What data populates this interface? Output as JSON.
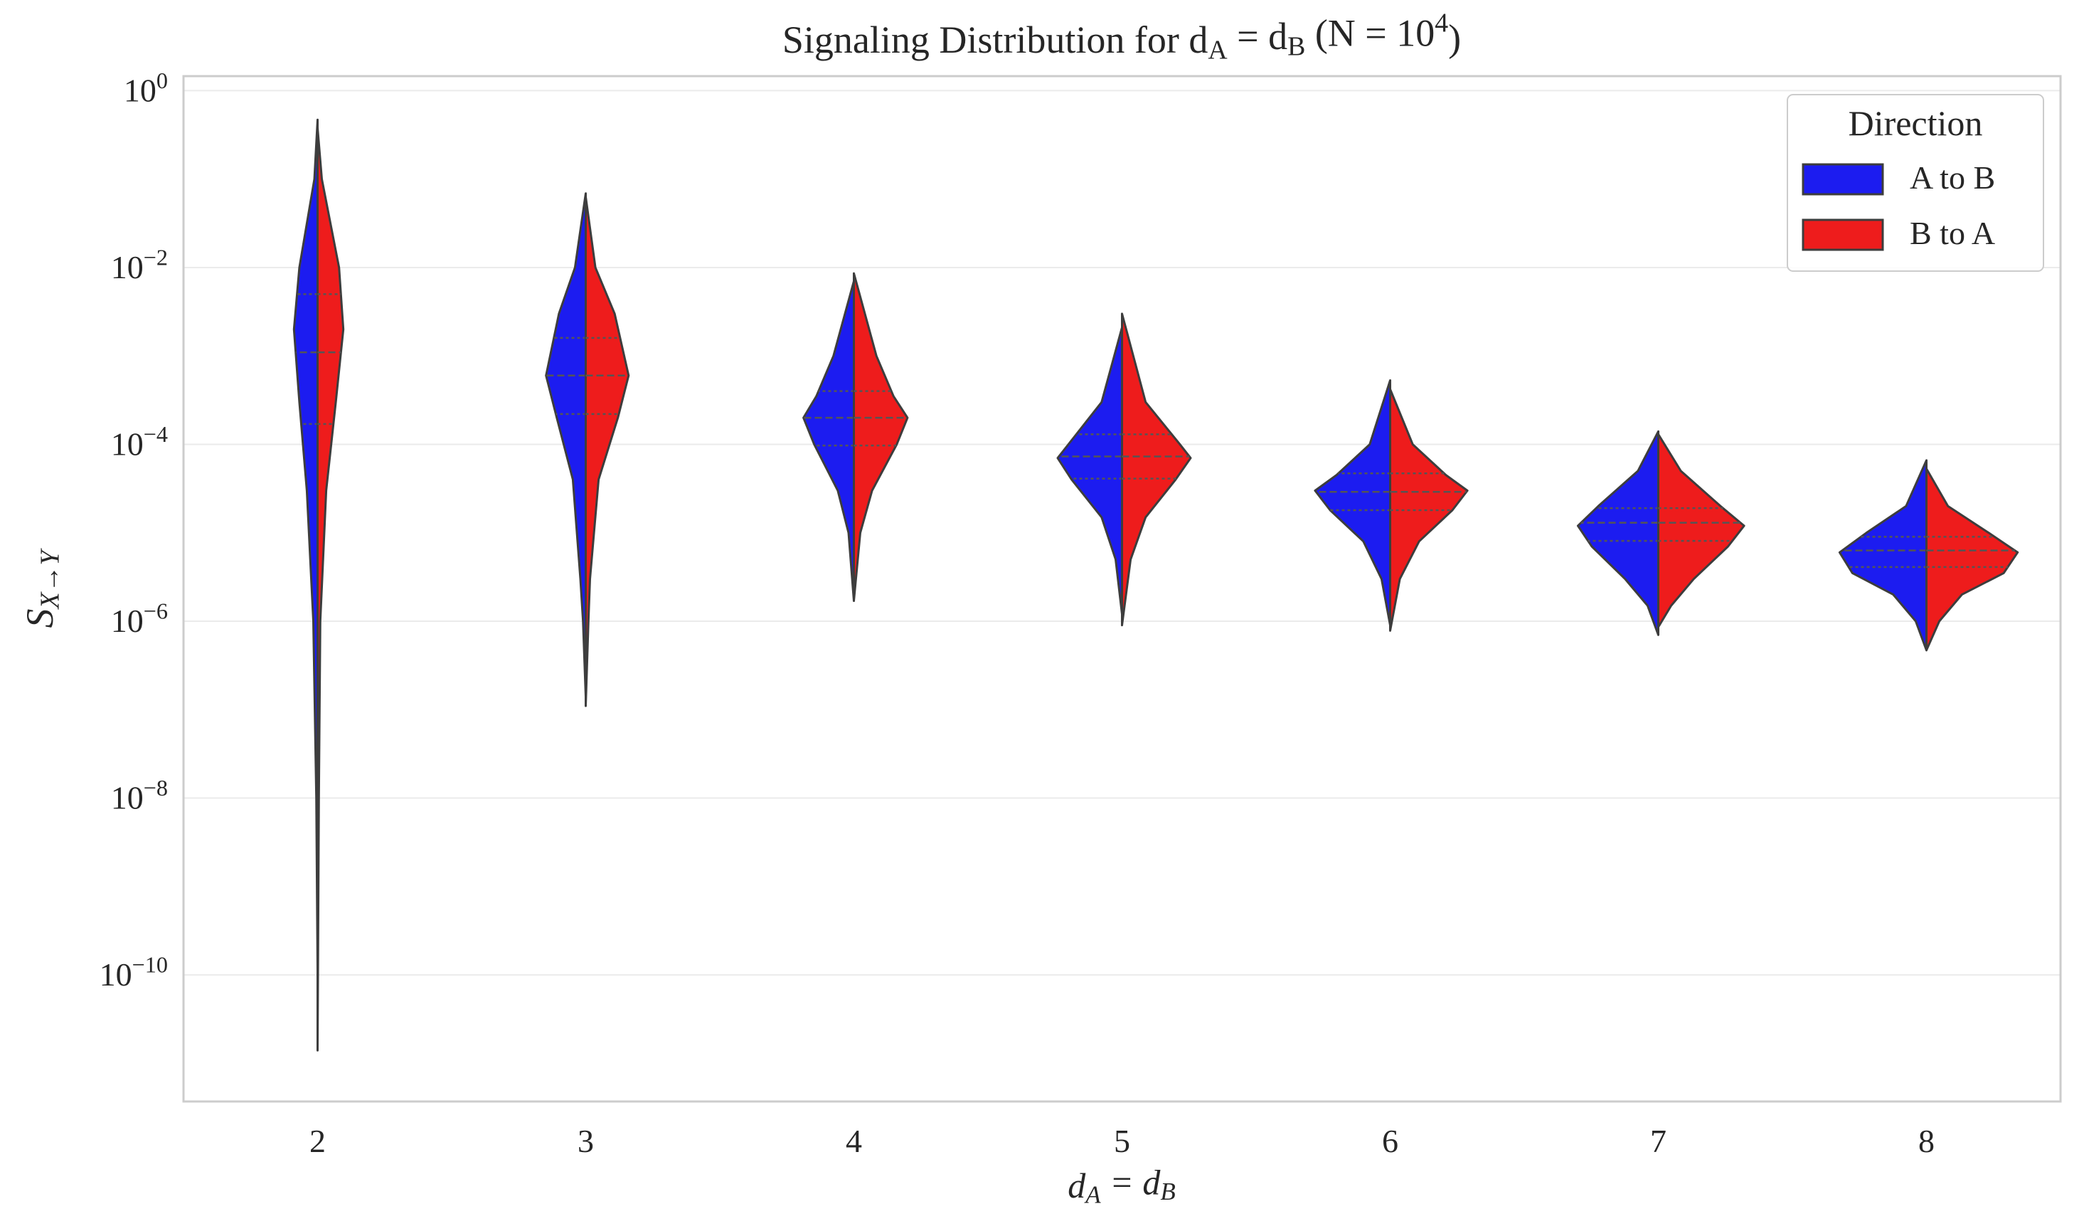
{
  "chart_data": {
    "type": "violin",
    "title": "Signaling Distribution for d_{A} = d_{B} (N = 10^{4})",
    "x_label": "d_{A} = d_{B}",
    "y_label": "S_{X→Y}",
    "y_scale": "log",
    "ylim": [
      3.7e-12,
      1.46
    ],
    "yticks": [
      {
        "value": 1,
        "label": "10^{0}"
      },
      {
        "value": 0.01,
        "label": "10^{−2}"
      },
      {
        "value": 0.0001,
        "label": "10^{−4}"
      },
      {
        "value": 1e-06,
        "label": "10^{−6}"
      },
      {
        "value": 1e-08,
        "label": "10^{−8}"
      },
      {
        "value": 1e-10,
        "label": "10^{−10}"
      }
    ],
    "grid": true,
    "legend_title": "Direction",
    "legend_position": "upper-right",
    "categories": [
      "2",
      "3",
      "4",
      "5",
      "6",
      "7",
      "8"
    ],
    "series": [
      {
        "name": "A to B",
        "color": "#1c1cf0",
        "violins": [
          {
            "q1": 0.00017,
            "median": 0.0011,
            "q3": 0.005,
            "density_y": [
              0.47,
              0.1,
              0.01,
              0.002,
              0.0003,
              3e-05,
              1e-06,
              1e-08,
              1.1e-10
            ],
            "density": [
              0,
              0.03,
              0.17,
              0.22,
              0.17,
              0.1,
              0.04,
              0.012,
              0
            ]
          },
          {
            "q1": 0.00022,
            "median": 0.0006,
            "q3": 0.0016,
            "density_y": [
              0.069,
              0.01,
              0.003,
              0.0006,
              0.0002,
              4e-05,
              3e-06,
              1e-06,
              1.4e-07
            ],
            "density": [
              0,
              0.1,
              0.25,
              0.37,
              0.27,
              0.12,
              0.05,
              0.025,
              0
            ]
          },
          {
            "q1": 9.7e-05,
            "median": 0.0002,
            "q3": 0.0004,
            "density_y": [
              0.007,
              0.001,
              0.00035,
              0.0002,
              0.0001,
              3e-05,
              1e-05,
              1.7e-06
            ],
            "density": [
              0,
              0.19,
              0.35,
              0.47,
              0.37,
              0.15,
              0.05,
              0
            ]
          },
          {
            "q1": 4.1e-05,
            "median": 7.3e-05,
            "q3": 0.00013,
            "density_y": [
              0.0021,
              0.0003,
              0.0001,
              7e-05,
              4e-05,
              1.5e-05,
              5e-06,
              1.2e-06
            ],
            "density": [
              0,
              0.19,
              0.5,
              0.6,
              0.47,
              0.19,
              0.06,
              0
            ]
          },
          {
            "q1": 1.8e-05,
            "median": 2.9e-05,
            "q3": 4.7e-05,
            "density_y": [
              0.00053,
              0.0001,
              4.5e-05,
              3e-05,
              1.8e-05,
              8e-06,
              3e-06,
              9e-07
            ],
            "density": [
              0,
              0.19,
              0.5,
              0.7,
              0.56,
              0.25,
              0.08,
              0
            ]
          },
          {
            "q1": 8.1e-06,
            "median": 1.3e-05,
            "q3": 1.9e-05,
            "density_y": [
              0.00014,
              5e-05,
              2e-05,
              1.2e-05,
              7e-06,
              3e-06,
              1.5e-06,
              7e-07
            ],
            "density": [
              0,
              0.19,
              0.56,
              0.75,
              0.62,
              0.31,
              0.1,
              0
            ]
          },
          {
            "q1": 4.1e-06,
            "median": 6.3e-06,
            "q3": 9e-06,
            "density_y": [
              6.6e-05,
              2e-05,
              1e-05,
              6e-06,
              3.5e-06,
              2e-06,
              1e-06,
              4.7e-07
            ],
            "density": [
              0,
              0.19,
              0.56,
              0.81,
              0.69,
              0.31,
              0.1,
              0
            ]
          }
        ]
      },
      {
        "name": "B to A",
        "color": "#ee1c1c",
        "violins": [
          {
            "q1": 0.00017,
            "median": 0.0011,
            "q3": 0.005,
            "density_y": [
              0.38,
              0.1,
              0.01,
              0.002,
              0.0003,
              3e-05,
              1e-06,
              1e-08,
              1.4e-11
            ],
            "density": [
              0,
              0.04,
              0.2,
              0.24,
              0.17,
              0.08,
              0.025,
              0.012,
              0
            ]
          },
          {
            "q1": 0.00022,
            "median": 0.0006,
            "q3": 0.0016,
            "density_y": [
              0.063,
              0.01,
              0.003,
              0.0006,
              0.0002,
              4e-05,
              3e-06,
              1e-06,
              1.1e-07
            ],
            "density": [
              0,
              0.09,
              0.27,
              0.4,
              0.3,
              0.12,
              0.04,
              0.025,
              0
            ]
          },
          {
            "q1": 9.7e-05,
            "median": 0.0002,
            "q3": 0.0004,
            "density_y": [
              0.0086,
              0.001,
              0.00035,
              0.0002,
              0.0001,
              3e-05,
              1e-05,
              1.7e-06
            ],
            "density": [
              0,
              0.21,
              0.37,
              0.5,
              0.4,
              0.17,
              0.06,
              0
            ]
          },
          {
            "q1": 4.1e-05,
            "median": 7.3e-05,
            "q3": 0.00013,
            "density_y": [
              0.003,
              0.0003,
              0.0001,
              7e-05,
              4e-05,
              1.5e-05,
              5e-06,
              9e-07
            ],
            "density": [
              0,
              0.22,
              0.54,
              0.64,
              0.5,
              0.22,
              0.08,
              0
            ]
          },
          {
            "q1": 1.8e-05,
            "median": 2.9e-05,
            "q3": 4.7e-05,
            "density_y": [
              0.00042,
              0.0001,
              4.5e-05,
              3e-05,
              1.8e-05,
              8e-06,
              3e-06,
              7.8e-07
            ],
            "density": [
              0,
              0.21,
              0.52,
              0.72,
              0.58,
              0.27,
              0.09,
              0
            ]
          },
          {
            "q1": 8.1e-06,
            "median": 1.3e-05,
            "q3": 1.9e-05,
            "density_y": [
              0.00013,
              5e-05,
              2e-05,
              1.2e-05,
              7e-06,
              3e-06,
              1.5e-06,
              8.6e-07
            ],
            "density": [
              0,
              0.21,
              0.58,
              0.8,
              0.65,
              0.33,
              0.12,
              0
            ]
          },
          {
            "q1": 4.1e-06,
            "median": 6.3e-06,
            "q3": 9e-06,
            "density_y": [
              5.3e-05,
              2e-05,
              1e-05,
              6e-06,
              3.5e-06,
              2e-06,
              1e-06,
              4.7e-07
            ],
            "density": [
              0,
              0.2,
              0.58,
              0.85,
              0.72,
              0.33,
              0.12,
              0
            ]
          }
        ]
      }
    ]
  }
}
